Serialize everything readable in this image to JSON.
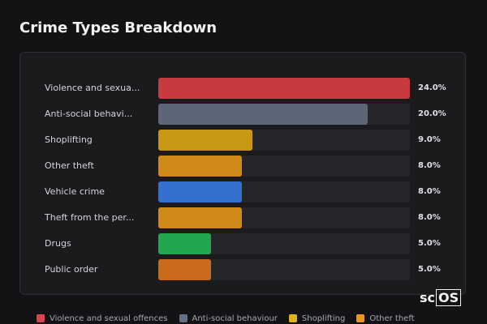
{
  "chart_data": {
    "type": "bar",
    "orientation": "horizontal",
    "title": "Crime Types Breakdown",
    "categories": [
      "Violence and sexua...",
      "Anti-social behavi...",
      "Shoplifting",
      "Other theft",
      "Vehicle crime",
      "Theft from the per...",
      "Drugs",
      "Public order"
    ],
    "values": [
      24.0,
      20.0,
      9.0,
      8.0,
      8.0,
      8.0,
      5.0,
      5.0
    ],
    "value_labels": [
      "24.0%",
      "20.0%",
      "9.0%",
      "8.0%",
      "8.0%",
      "8.0%",
      "5.0%",
      "5.0%"
    ],
    "colors": [
      "#c73a3f",
      "#5d6676",
      "#c59a12",
      "#cf8a17",
      "#3470cf",
      "#cf8a17",
      "#22a650",
      "#cc6a1c"
    ],
    "xlim": [
      0,
      24
    ],
    "grid": false,
    "legend": {
      "position": "bottom",
      "items": [
        {
          "label": "Violence and sexual offences",
          "color": "#d9434a"
        },
        {
          "label": "Anti-social behaviour",
          "color": "#667085"
        },
        {
          "label": "Shoplifting",
          "color": "#e0b21a"
        },
        {
          "label": "Other theft",
          "color": "#e89a1e"
        }
      ]
    }
  },
  "brand": {
    "prefix": "sc",
    "boxed": "OS"
  }
}
